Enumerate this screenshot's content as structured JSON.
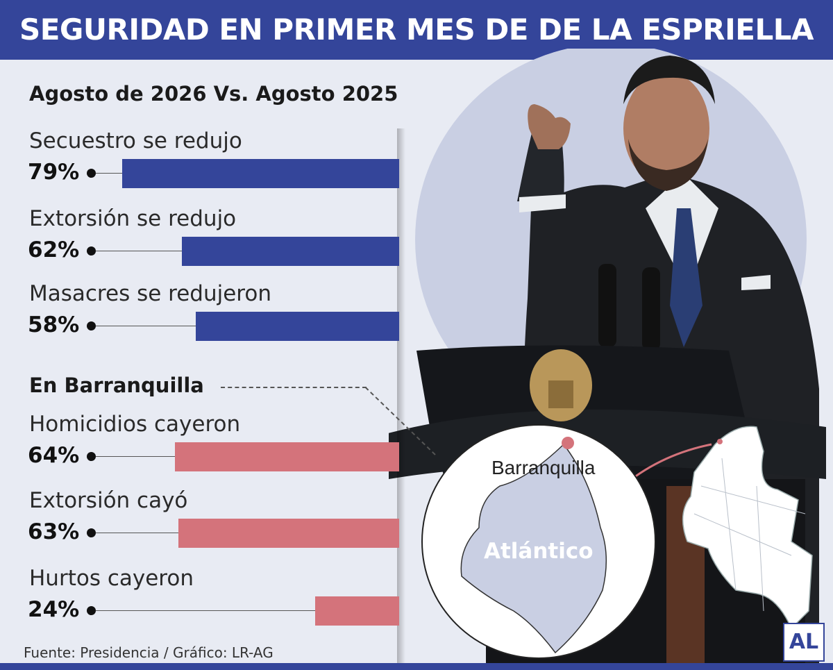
{
  "header": {
    "title": "SEGURIDAD EN PRIMER MES DE DE LA ESPRIELLA"
  },
  "subtitle": "Agosto de 2026 Vs. Agosto 2025",
  "section_label": "En Barranquilla",
  "source": "Fuente: Presidencia / Gráfico: LR-AG",
  "map": {
    "city": "Barranquilla",
    "department": "Atlántico"
  },
  "logo": "AL",
  "colors": {
    "header": "#34459a",
    "national_bar": "#34459a",
    "local_bar": "#d4737b",
    "background": "#e8ebf3"
  },
  "chart_data": [
    {
      "type": "bar",
      "title": "Agosto de 2026 Vs. Agosto 2025",
      "orientation": "horizontal",
      "categories": [
        "Secuestro se redujo",
        "Extorsión se redujo",
        "Masacres se redujeron"
      ],
      "values": [
        79,
        62,
        58
      ],
      "value_labels": [
        "79%",
        "62%",
        "58%"
      ],
      "color": "#34459a"
    },
    {
      "type": "bar",
      "title": "En Barranquilla",
      "orientation": "horizontal",
      "categories": [
        "Homicidios cayeron",
        "Extorsión cayó",
        "Hurtos cayeron"
      ],
      "values": [
        64,
        63,
        24
      ],
      "value_labels": [
        "64%",
        "63%",
        "24%"
      ],
      "color": "#d4737b"
    }
  ]
}
